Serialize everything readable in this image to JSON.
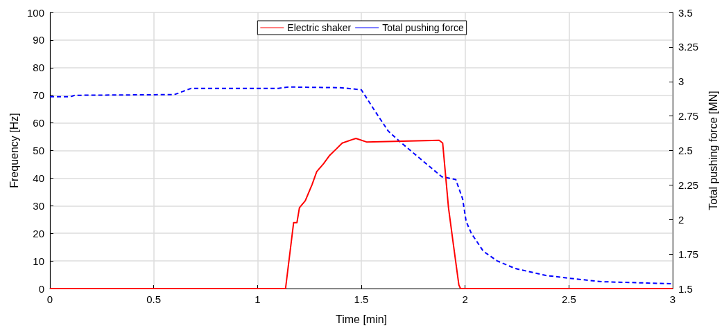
{
  "chart_data": {
    "type": "line",
    "xlabel": "Time [min]",
    "ylabel": "Frequency [Hz]",
    "y2label": "Total pushing force [MN]",
    "xlim": [
      0,
      3
    ],
    "xticks": [
      0,
      0.5,
      1,
      1.5,
      2,
      2.5,
      3
    ],
    "ylim": [
      0,
      100
    ],
    "yticks": [
      0,
      10,
      20,
      30,
      40,
      50,
      60,
      70,
      80,
      90,
      100
    ],
    "y2lim": [
      1.5,
      3.5
    ],
    "y2ticks": [
      1.5,
      1.75,
      2,
      2.25,
      2.5,
      2.75,
      3,
      3.25,
      3.5
    ],
    "grid": true,
    "legend": "top",
    "marker": "none",
    "series": [
      {
        "name": "Electric shaker",
        "color": "#ff0000",
        "line_style": "solid",
        "x": [
          0,
          1.135,
          1.174,
          1.19,
          1.202,
          1.23,
          1.263,
          1.285,
          1.318,
          1.346,
          1.38,
          1.408,
          1.474,
          1.525,
          1.875,
          1.892,
          1.92,
          1.942,
          1.97,
          1.978,
          3
        ],
        "values": [
          0,
          0,
          23.9,
          23.9,
          29.3,
          31.8,
          37.7,
          42.3,
          45.2,
          48.1,
          50.6,
          52.7,
          54.4,
          53.1,
          53.7,
          52.7,
          29.3,
          16.8,
          1.3,
          0,
          0
        ]
      },
      {
        "name": "Total pushing force",
        "color": "#0000ff",
        "line_style": "dashed",
        "axis": "y2",
        "x": [
          0,
          0.1,
          0.12,
          0.6,
          0.68,
          1.1,
          1.15,
          1.4,
          1.5,
          1.564,
          1.63,
          1.687,
          1.808,
          1.888,
          1.955,
          1.988,
          2.005,
          2.03,
          2.088,
          2.155,
          2.242,
          2.389,
          2.5,
          2.656,
          2.877,
          3
        ],
        "values": [
          2.89,
          2.89,
          2.9,
          2.905,
          2.95,
          2.95,
          2.96,
          2.955,
          2.94,
          2.79,
          2.64,
          2.563,
          2.41,
          2.31,
          2.29,
          2.15,
          1.986,
          1.9,
          1.77,
          1.7,
          1.645,
          1.595,
          1.575,
          1.55,
          1.54,
          1.535
        ]
      }
    ]
  }
}
